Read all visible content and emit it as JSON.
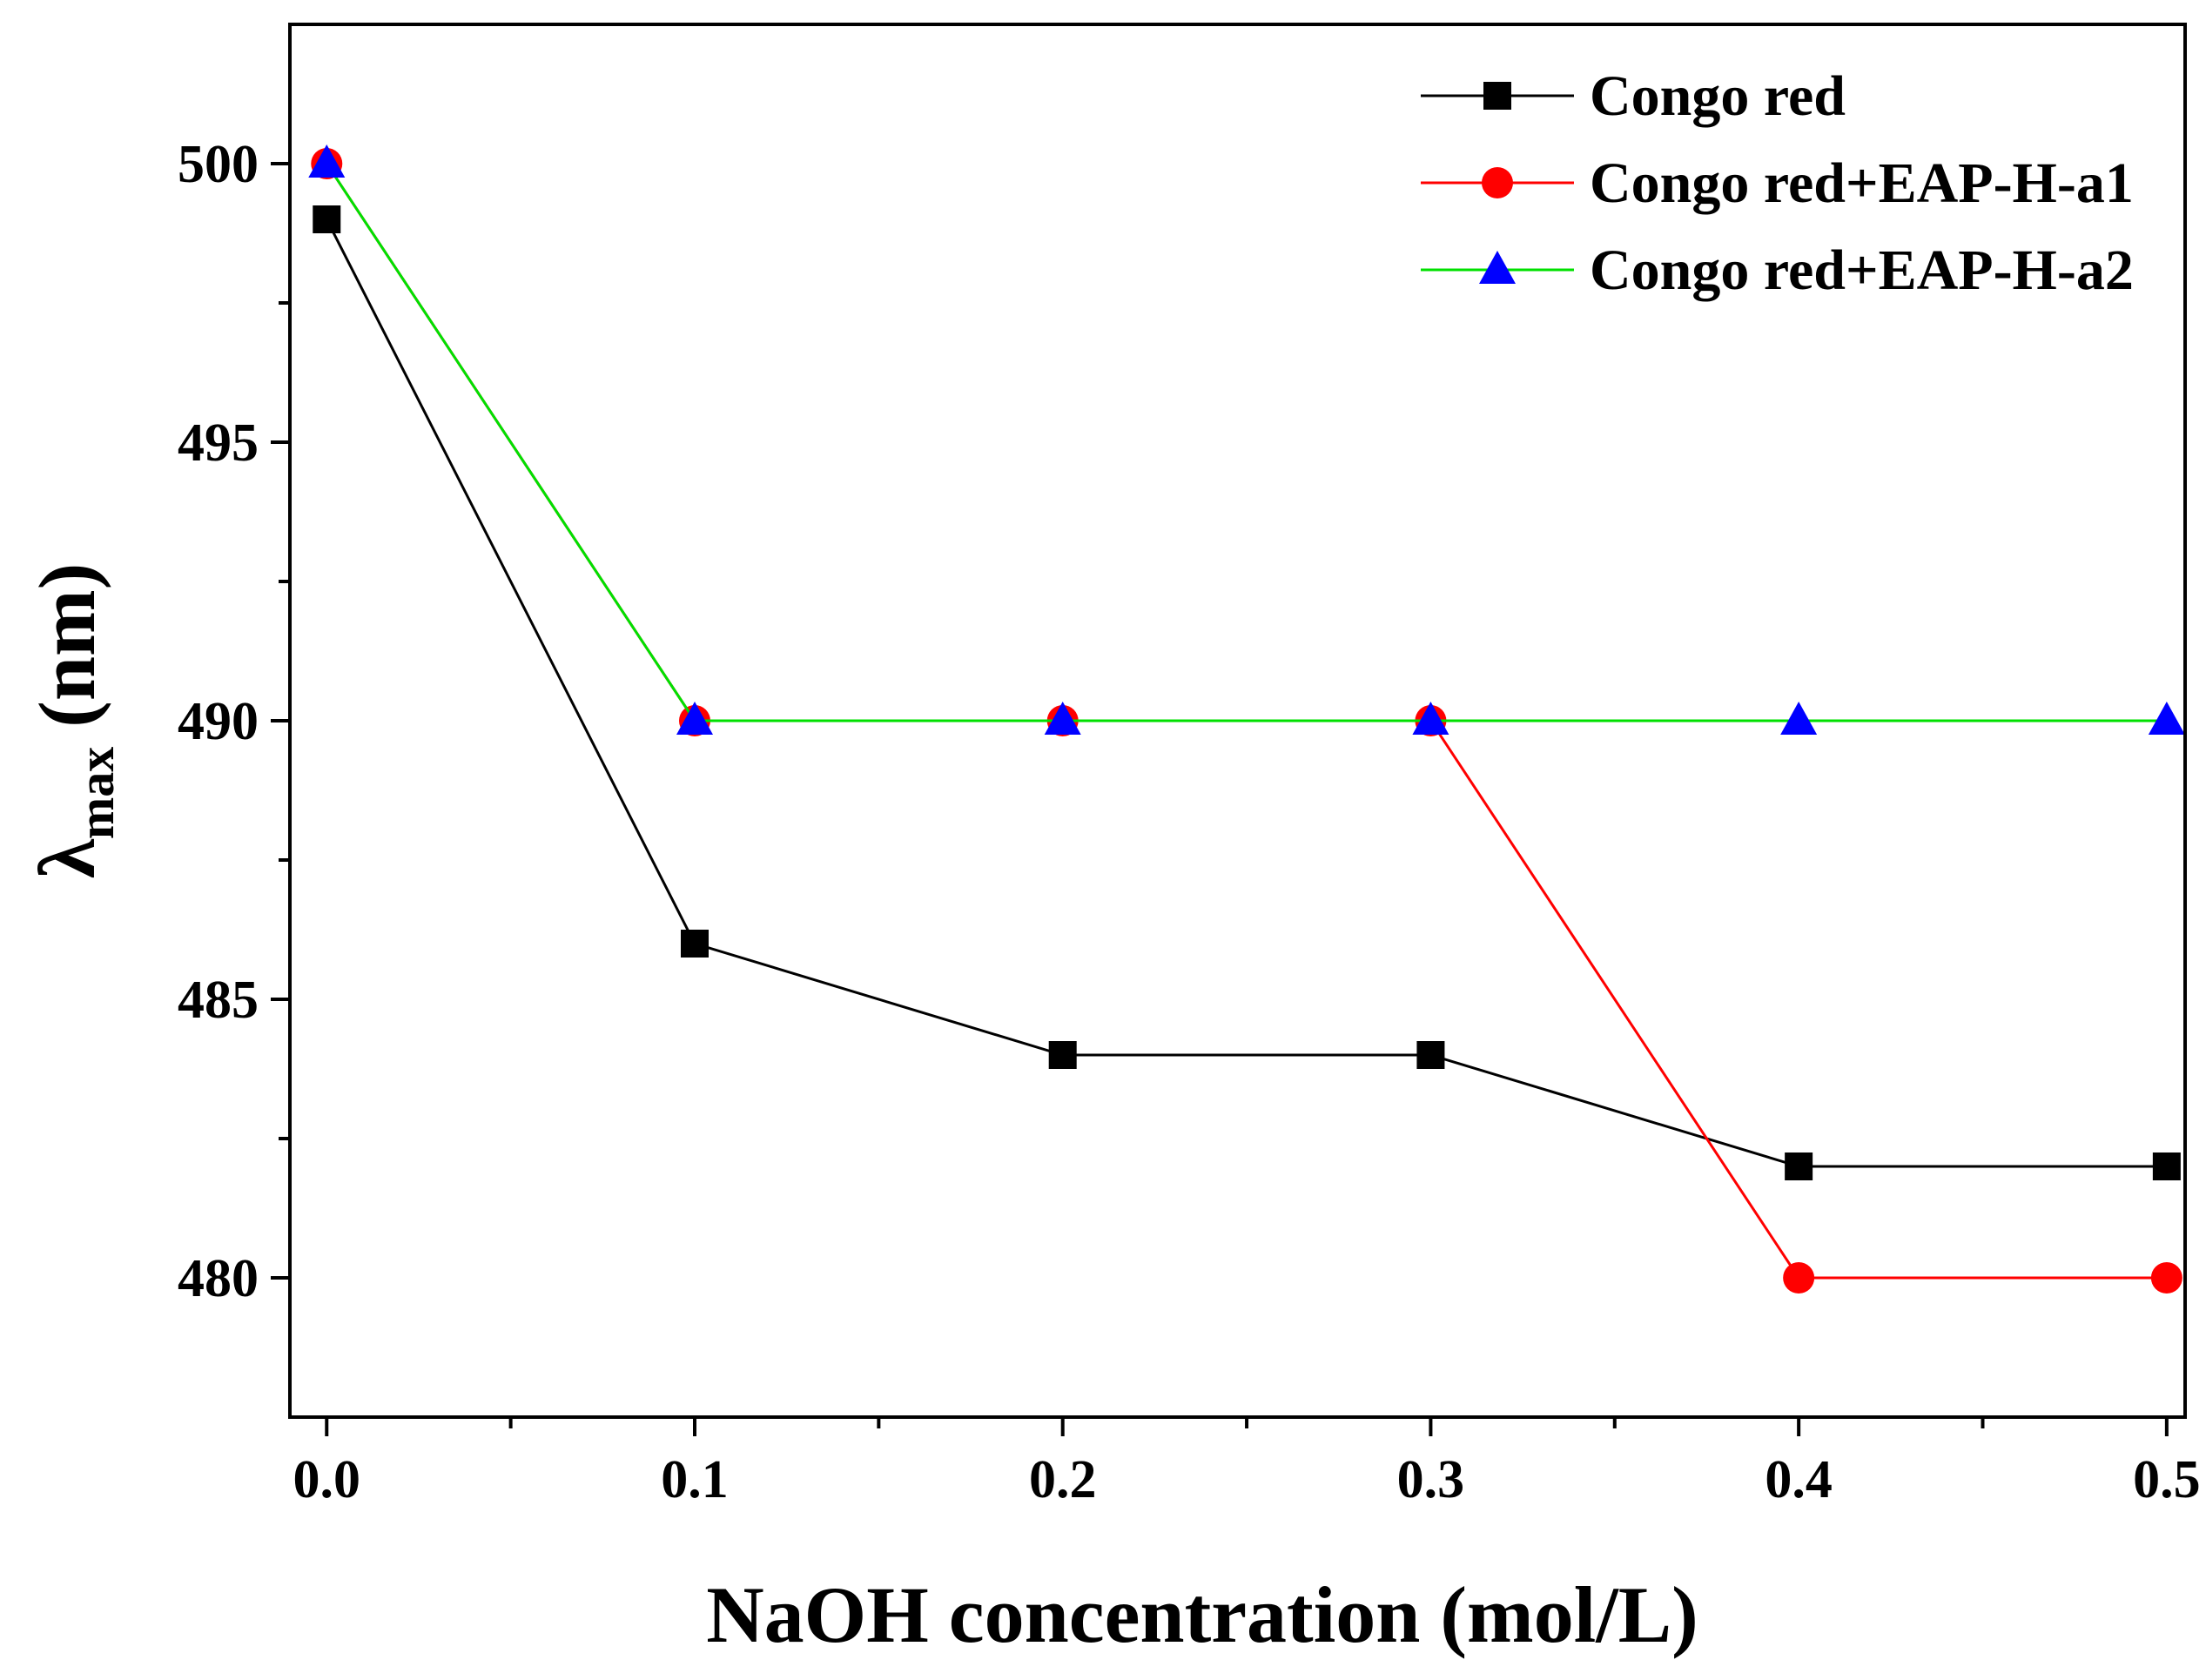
{
  "chart_data": {
    "type": "line",
    "title": "",
    "xlabel": "NaOH concentration (mol/L)",
    "ylabel": {
      "symbol": "λ",
      "subscript": "max",
      "unit": "(nm)"
    },
    "x": [
      0.0,
      0.1,
      0.2,
      0.3,
      0.4,
      0.5
    ],
    "xlim": [
      -0.01,
      0.505
    ],
    "ylim": [
      477.5,
      502.5
    ],
    "x_ticks": [
      0.0,
      0.1,
      0.2,
      0.3,
      0.4,
      0.5
    ],
    "x_tick_labels": [
      "0.0",
      "0.1",
      "0.2",
      "0.3",
      "0.4",
      "0.5"
    ],
    "x_minor_ticks": [
      0.05,
      0.15,
      0.25,
      0.35,
      0.45
    ],
    "y_ticks": [
      480,
      485,
      490,
      495,
      500
    ],
    "y_tick_labels": [
      "480",
      "485",
      "490",
      "495",
      "500"
    ],
    "y_minor_ticks": [
      482.5,
      487.5,
      492.5,
      497.5
    ],
    "grid": false,
    "legend_position": "top-right",
    "series": [
      {
        "name": "Congo red",
        "values": [
          499,
          486,
          484,
          484,
          482,
          482
        ],
        "color": "#000000",
        "marker": "square"
      },
      {
        "name": "Congo red+EAP-H-a1",
        "values": [
          500,
          490,
          490,
          490,
          480,
          480
        ],
        "color": "#ff0000",
        "marker": "circle"
      },
      {
        "name": "Congo red+EAP-H-a2",
        "values": [
          500,
          490,
          490,
          490,
          490,
          490
        ],
        "color": "#00e000",
        "marker_color": "#0000ff",
        "marker": "triangle"
      }
    ]
  }
}
